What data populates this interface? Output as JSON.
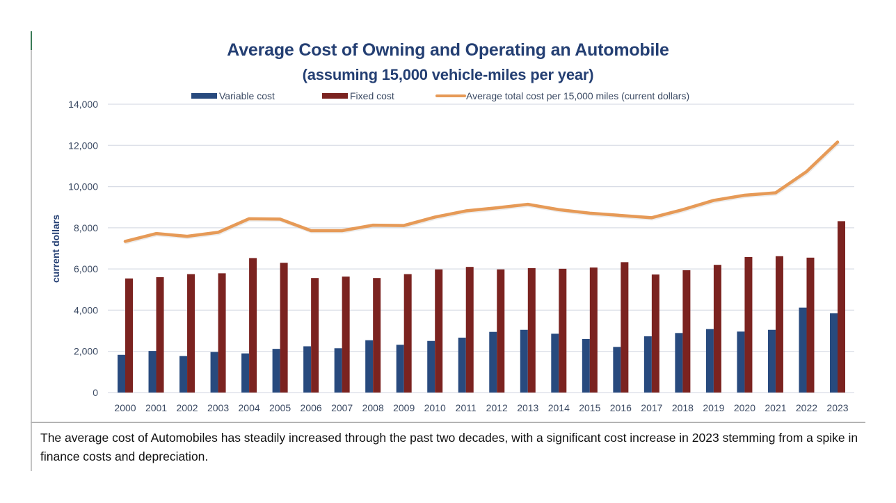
{
  "chart_data": {
    "type": "bar",
    "title": "Average Cost of Owning and Operating an Automobile",
    "subtitle": "(assuming 15,000 vehicle-miles per year)",
    "xlabel": "",
    "ylabel": "current dollars",
    "ylim": [
      0,
      14000
    ],
    "yticks": [
      0,
      2000,
      4000,
      6000,
      8000,
      10000,
      12000,
      14000
    ],
    "ytick_labels": [
      "0",
      "2,000",
      "4,000",
      "6,000",
      "8,000",
      "10,000",
      "12,000",
      "14,000"
    ],
    "grid": true,
    "legend_position": "top-center",
    "categories": [
      "2000",
      "2001",
      "2002",
      "2003",
      "2004",
      "2005",
      "2006",
      "2007",
      "2008",
      "2009",
      "2010",
      "2011",
      "2012",
      "2013",
      "2014",
      "2015",
      "2016",
      "2017",
      "2018",
      "2019",
      "2020",
      "2021",
      "2022",
      "2023"
    ],
    "series": [
      {
        "name": "Variable cost",
        "type": "bar",
        "color": "#284a7e",
        "values": [
          1830,
          2020,
          1775,
          1965,
          1900,
          2120,
          2245,
          2150,
          2540,
          2320,
          2505,
          2665,
          2945,
          3045,
          2855,
          2600,
          2215,
          2730,
          2890,
          3080,
          2960,
          3045,
          4125,
          3845
        ]
      },
      {
        "name": "Fixed cost",
        "type": "bar",
        "color": "#7b2320",
        "values": [
          5540,
          5600,
          5750,
          5790,
          6530,
          6300,
          5560,
          5630,
          5560,
          5750,
          5980,
          6100,
          5980,
          6040,
          6010,
          6070,
          6330,
          5730,
          5940,
          6200,
          6580,
          6620,
          6550,
          8320
        ]
      },
      {
        "name": "Average total cost per 15,000 miles (current dollars)",
        "type": "line",
        "color": "#e69a57",
        "values": [
          7340,
          7720,
          7585,
          7780,
          8440,
          8420,
          7860,
          7860,
          8125,
          8110,
          8520,
          8820,
          8970,
          9140,
          8880,
          8710,
          8600,
          8490,
          8880,
          9330,
          9580,
          9700,
          10730,
          12160
        ]
      }
    ]
  },
  "caption": "The average cost of Automobiles has steadily increased through the past two decades, with a significant cost increase in 2023 stemming from a spike in finance costs and depreciation.",
  "colors": {
    "title": "#243f73",
    "gridline": "#d9dde6",
    "accent_rule": "#3a7a56"
  }
}
